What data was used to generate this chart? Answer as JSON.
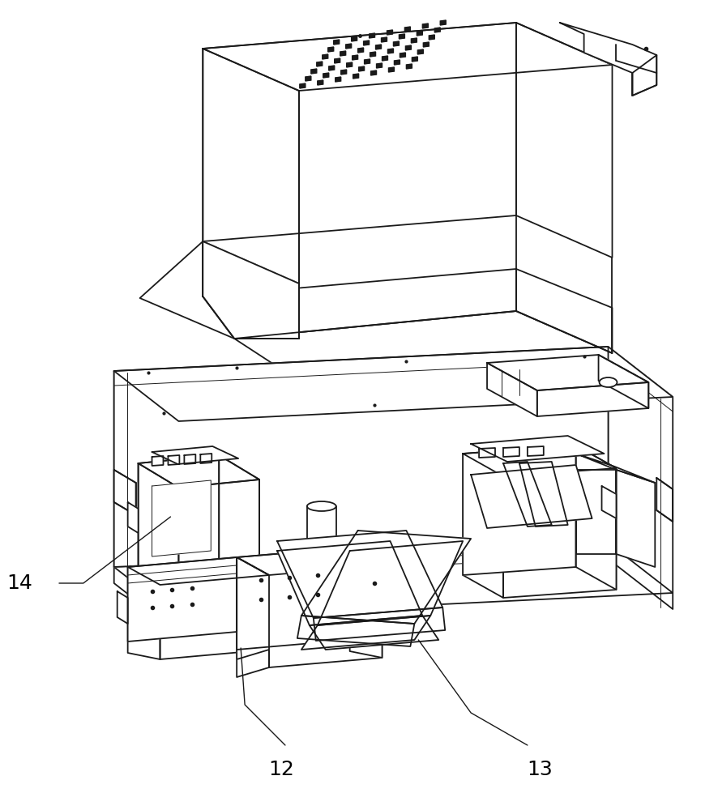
{
  "background_color": "#ffffff",
  "line_color": "#1a1a1a",
  "lw": 1.3,
  "tlw": 0.7,
  "label_fontsize": 18,
  "figsize": [
    8.87,
    10.0
  ],
  "dpi": 100
}
